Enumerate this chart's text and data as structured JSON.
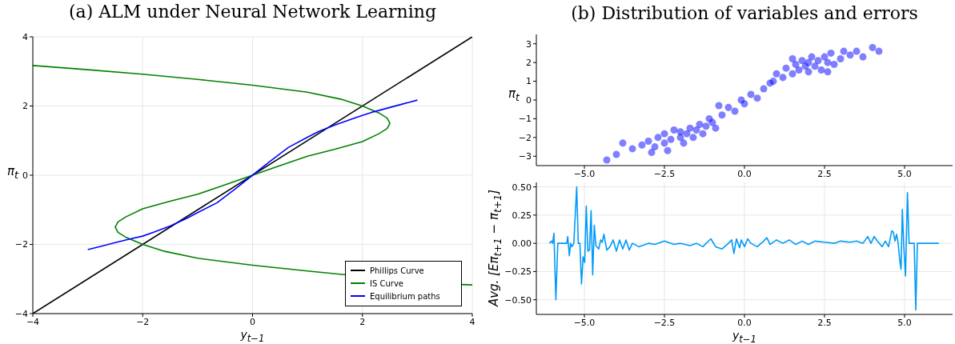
{
  "chart_data": [
    {
      "type": "line",
      "title": "(a) ALM under Neural Network Learning",
      "xlabel": "y$_{t−1}$",
      "ylabel": "π$_{t}$",
      "xlim": [
        -4,
        4
      ],
      "ylim": [
        -4,
        4
      ],
      "xticks": [
        {
          "value": -4,
          "label": "−4"
        },
        {
          "value": -2,
          "label": "−2"
        },
        0,
        2,
        4
      ],
      "yticks": [
        {
          "value": -4,
          "label": "−4"
        },
        {
          "value": -2,
          "label": "−2"
        },
        0,
        2,
        4
      ],
      "grid": true,
      "legend": "bottom right",
      "series": [
        {
          "name": "Phillips Curve",
          "color": "#000000",
          "x": [
            -4,
            4
          ],
          "values": [
            -4,
            4
          ]
        },
        {
          "name": "IS Curve",
          "color": "#008000",
          "x": [
            -4,
            -3,
            -2,
            -1,
            0,
            1,
            1.6,
            2,
            2.3,
            2.45,
            2.5,
            2.45,
            2.3,
            2,
            1.5,
            1,
            0.5,
            0,
            -0.5,
            -1,
            -1.5,
            -2,
            -2.3,
            -2.45,
            -2.5,
            -2.45,
            -2.3,
            -2,
            -1.6,
            -1,
            0,
            1,
            1.7,
            2,
            3,
            3.8,
            4
          ],
          "values": [
            3.17,
            3.05,
            2.92,
            2.77,
            2.6,
            2.4,
            2.2,
            2.0,
            1.8,
            1.65,
            1.5,
            1.35,
            1.2,
            0.97,
            0.75,
            0.55,
            0.28,
            0,
            -0.28,
            -0.55,
            -0.75,
            -0.97,
            -1.2,
            -1.35,
            -1.5,
            -1.65,
            -1.8,
            -2.0,
            -2.2,
            -2.4,
            -2.6,
            -2.77,
            -2.88,
            null,
            null,
            -3.16,
            -3.17
          ]
        },
        {
          "name": "Equilibrium paths",
          "color": "#0000ff",
          "x": [
            -3,
            -2.75,
            -2.5,
            -2.25,
            -2,
            -1.8,
            -1.5,
            -1.2,
            -1,
            -0.65,
            -0.3,
            0,
            0.3,
            0.65,
            1,
            1.2,
            1.5,
            1.85,
            2,
            2.2,
            2.55,
            3
          ],
          "values": [
            -2.15,
            -2.05,
            -1.95,
            -1.85,
            -1.76,
            -1.65,
            -1.47,
            -1.25,
            -1.08,
            -0.8,
            -0.38,
            0,
            0.38,
            0.8,
            1.1,
            1.26,
            1.45,
            1.65,
            1.73,
            1.83,
            1.98,
            2.17
          ]
        }
      ]
    },
    {
      "type": "scatter",
      "title": "(b) Distribution of variables and errors",
      "ylabel": "π$_{t}$",
      "xlim": [
        -6.5,
        6.5
      ],
      "ylim": [
        -3.5,
        3.5
      ],
      "xticks": [
        {
          "value": -5,
          "label": "−5.0"
        },
        {
          "value": -2.5,
          "label": "−2.5"
        },
        {
          "value": 0,
          "label": "0.0"
        },
        {
          "value": 2.5,
          "label": "2.5"
        },
        {
          "value": 5,
          "label": "5.0"
        }
      ],
      "yticks": [
        {
          "value": -3,
          "label": "−3"
        },
        {
          "value": -2,
          "label": "−2"
        },
        {
          "value": -1,
          "label": "−1"
        },
        0,
        1,
        2,
        3
      ],
      "grid": false,
      "series": [
        {
          "color": "#0000ff",
          "x": [
            -3.5,
            -3.2,
            -3,
            -2.8,
            -2.7,
            -2.5,
            -2.5,
            -2.3,
            -2.2,
            -2,
            -2,
            -1.9,
            -1.8,
            -1.7,
            -1.6,
            -1.5,
            -1.4,
            -1.3,
            -1.2,
            -1,
            -0.9,
            -2.9,
            -2.4,
            -1.1,
            -4,
            -4.3,
            -3.8,
            -0.7,
            -0.5,
            -0.3,
            -0.1,
            0,
            0.2,
            0.4,
            0.6,
            0.8,
            -0.8,
            0.9,
            1,
            1.2,
            1.3,
            1.5,
            1.6,
            1.7,
            1.8,
            1.9,
            2,
            2,
            2.1,
            2.2,
            2.3,
            2.4,
            2.5,
            2.6,
            2.7,
            2.8,
            3,
            3.1,
            3.3,
            3.5,
            3.7,
            4,
            4.2,
            1.5,
            2.6
          ],
          "values": [
            -2.6,
            -2.4,
            -2.2,
            -2.5,
            -2,
            -2.3,
            -1.8,
            -2.1,
            -1.6,
            -2,
            -1.7,
            -2.3,
            -1.8,
            -1.5,
            -2,
            -1.6,
            -1.3,
            -1.8,
            -1.4,
            -1.2,
            -1.5,
            -2.8,
            -2.7,
            -1,
            -2.9,
            -3.2,
            -2.3,
            -0.8,
            -0.4,
            -0.6,
            0,
            -0.2,
            0.3,
            0.1,
            0.6,
            0.9,
            -0.3,
            1,
            1.4,
            1.2,
            1.7,
            1.4,
            1.9,
            1.6,
            2.1,
            1.8,
            1.5,
            2,
            2.3,
            1.8,
            2.1,
            1.6,
            2.3,
            2,
            2.5,
            1.9,
            2.2,
            2.6,
            2.4,
            2.6,
            2.3,
            2.8,
            2.6,
            2.2,
            1.5
          ]
        }
      ]
    },
    {
      "type": "line",
      "xlabel": "y$_{t−1}$",
      "ylabel": "Avg. [Eπ$_{t+1}$ − π$_{t+1}$]",
      "xlim": [
        -6.5,
        6.5
      ],
      "ylim": [
        -0.63,
        0.54
      ],
      "xticks": [
        {
          "value": -5,
          "label": "−5.0"
        },
        {
          "value": -2.5,
          "label": "−2.5"
        },
        {
          "value": 0,
          "label": "0.0"
        },
        {
          "value": 2.5,
          "label": "2.5"
        },
        {
          "value": 5,
          "label": "5.0"
        }
      ],
      "yticks": [
        {
          "value": -0.5,
          "label": "−0.50"
        },
        {
          "value": -0.25,
          "label": "−0.25"
        },
        {
          "value": 0,
          "label": "0.00"
        },
        {
          "value": 0.25,
          "label": "0.25"
        },
        {
          "value": 0.5,
          "label": "0.50"
        }
      ],
      "grid": true,
      "series": [
        {
          "color": "#009af9",
          "x": [
            -6.09,
            -6.03,
            -5.99,
            -5.95,
            -5.89,
            -5.83,
            -5.55,
            -5.52,
            -5.47,
            -5.43,
            -5.39,
            -5.33,
            -5.24,
            -5.19,
            -5.14,
            -5.09,
            -5.04,
            -4.99,
            -4.94,
            -4.89,
            -4.84,
            -4.79,
            -4.74,
            -4.69,
            -4.64,
            -4.55,
            -4.49,
            -4.44,
            -4.39,
            -4.3,
            -4.2,
            -4.1,
            -4,
            -3.9,
            -3.8,
            -3.7,
            -3.6,
            -3.5,
            -3.3,
            -3,
            -2.8,
            -2.5,
            -2.2,
            -2,
            -1.7,
            -1.5,
            -1.3,
            -1.05,
            -0.9,
            -0.7,
            -0.5,
            -0.4,
            -0.33,
            -0.25,
            -0.15,
            -0.1,
            0,
            0.1,
            0.2,
            0.4,
            0.6,
            0.7,
            0.8,
            1,
            1.2,
            1.4,
            1.6,
            1.8,
            2,
            2.2,
            2.5,
            2.8,
            3,
            3.3,
            3.5,
            3.7,
            3.85,
            3.95,
            4.05,
            4.15,
            4.3,
            4.4,
            4.5,
            4.6,
            4.65,
            4.7,
            4.75,
            4.8,
            4.85,
            4.89,
            4.93,
            4.97,
            5.03,
            5.09,
            5.14,
            5.3,
            5.35,
            5.4,
            6.07
          ],
          "values": [
            0,
            0.02,
            0,
            0.09,
            -0.5,
            0,
            0,
            0.06,
            -0.11,
            0,
            -0.03,
            0,
            0.5,
            0,
            0,
            -0.36,
            -0.12,
            -0.17,
            0.33,
            -0.07,
            -0.06,
            0.29,
            -0.28,
            0.16,
            -0.02,
            -0.05,
            0.03,
            0.01,
            0.08,
            -0.06,
            -0.03,
            0.03,
            -0.07,
            0.03,
            -0.05,
            0.03,
            -0.06,
            0,
            -0.03,
            0,
            -0.01,
            0.02,
            -0.01,
            0,
            -0.02,
            0,
            -0.03,
            0.04,
            -0.03,
            -0.05,
            0,
            0.03,
            -0.09,
            0.04,
            -0.04,
            0.03,
            -0.03,
            0.04,
            0,
            -0.03,
            0.02,
            0.05,
            -0.01,
            0.03,
            0,
            0.03,
            -0.01,
            0.02,
            -0.01,
            0.02,
            0.01,
            0,
            0.02,
            0.01,
            0.02,
            0,
            0.06,
            0,
            0.06,
            0.02,
            -0.03,
            0.02,
            -0.03,
            0.11,
            0.1,
            0.02,
            0.08,
            0,
            -0.15,
            -0.23,
            0.3,
            0,
            -0.29,
            0.45,
            0,
            0,
            -0.59,
            0,
            0
          ]
        }
      ]
    }
  ]
}
